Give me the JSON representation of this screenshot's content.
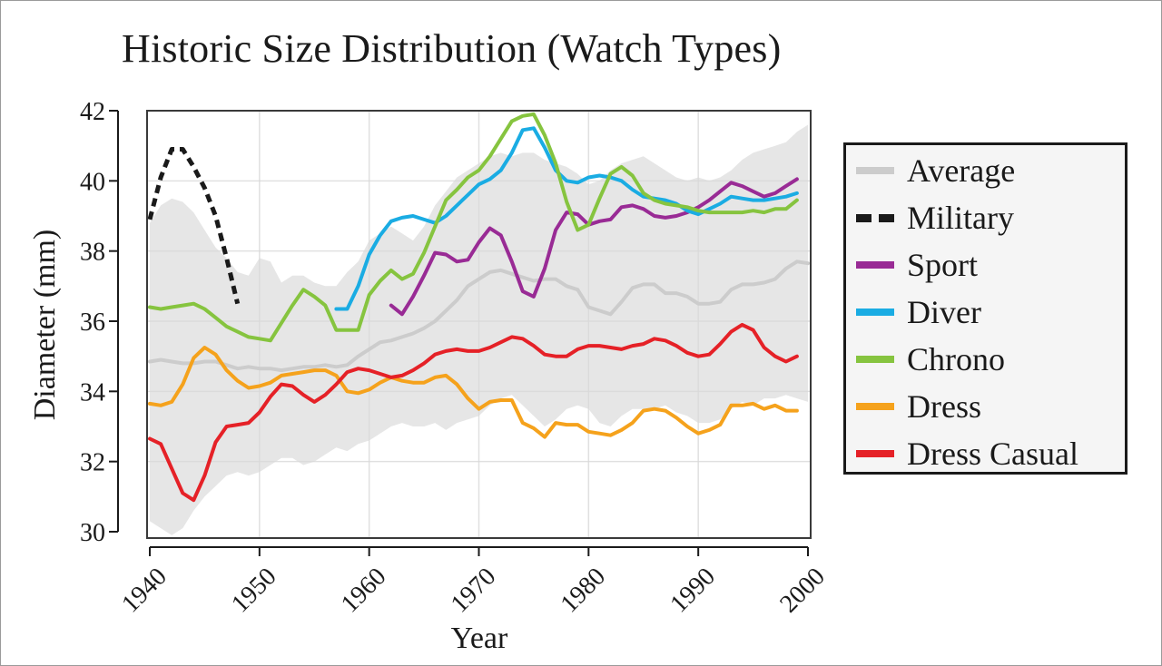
{
  "chart_data": {
    "type": "line",
    "title": "Historic Size Distribution (Watch Types)",
    "xlabel": "Year",
    "ylabel": "Diameter (mm)",
    "xlim": [
      1940,
      2000
    ],
    "ylim": [
      30,
      42
    ],
    "xticks": [
      1940,
      1950,
      1960,
      1970,
      1980,
      1990,
      2000
    ],
    "yticks": [
      30,
      32,
      34,
      36,
      38,
      40,
      42
    ],
    "xtick_labels": [
      "1940",
      "1950",
      "1960",
      "1970",
      "1980",
      "1990",
      "2000"
    ],
    "ytick_labels": [
      "30",
      "32",
      "34",
      "36",
      "38",
      "40",
      "42"
    ],
    "grid": true,
    "legend_position": "right",
    "band": {
      "name": "Average range",
      "color": "#e6e6e6",
      "x": [
        1940,
        1941,
        1942,
        1943,
        1944,
        1945,
        1946,
        1947,
        1948,
        1949,
        1950,
        1951,
        1952,
        1953,
        1954,
        1955,
        1956,
        1957,
        1958,
        1959,
        1960,
        1961,
        1962,
        1963,
        1964,
        1965,
        1966,
        1967,
        1968,
        1969,
        1970,
        1971,
        1972,
        1973,
        1974,
        1975,
        1976,
        1977,
        1978,
        1979,
        1980,
        1981,
        1982,
        1983,
        1984,
        1985,
        1986,
        1987,
        1988,
        1989,
        1990,
        1991,
        1992,
        1993,
        1994,
        1995,
        1996,
        1997,
        1998,
        1999,
        2000
      ],
      "upper": [
        38.8,
        39.3,
        39.5,
        39.4,
        39.1,
        38.6,
        38.1,
        37.8,
        37.4,
        37.3,
        37.8,
        37.7,
        37.1,
        37.3,
        37.3,
        37.1,
        37.0,
        37.0,
        37.4,
        37.7,
        38.3,
        38.5,
        38.7,
        38.5,
        38.3,
        38.7,
        39.3,
        39.7,
        40.1,
        40.3,
        40.5,
        40.7,
        40.8,
        40.7,
        40.8,
        40.8,
        40.6,
        40.5,
        40.4,
        40.2,
        39.9,
        40.0,
        40.3,
        40.5,
        40.6,
        40.7,
        40.5,
        40.3,
        40.1,
        40.0,
        40.1,
        40.0,
        40.1,
        40.3,
        40.6,
        40.8,
        40.9,
        41.0,
        41.1,
        41.4,
        41.6
      ],
      "lower": [
        30.3,
        30.1,
        29.9,
        30.1,
        30.6,
        31.0,
        31.3,
        31.6,
        31.7,
        31.6,
        31.7,
        31.9,
        32.1,
        32.1,
        31.9,
        32.0,
        32.2,
        32.4,
        32.3,
        32.5,
        32.6,
        32.8,
        33.0,
        33.1,
        33.0,
        33.0,
        33.1,
        32.9,
        33.1,
        33.2,
        33.3,
        33.6,
        33.8,
        33.9,
        33.6,
        33.3,
        33.0,
        33.2,
        33.5,
        33.6,
        33.5,
        33.1,
        33.0,
        33.3,
        33.5,
        33.5,
        33.5,
        33.6,
        33.4,
        33.3,
        33.1,
        33.1,
        33.2,
        33.5,
        33.7,
        33.6,
        33.8,
        33.8,
        33.9,
        33.8,
        33.7
      ]
    },
    "series": [
      {
        "name": "Average",
        "color": "#cccccc",
        "dash": false,
        "x": [
          1940,
          1941,
          1942,
          1943,
          1944,
          1945,
          1946,
          1947,
          1948,
          1949,
          1950,
          1951,
          1952,
          1953,
          1954,
          1955,
          1956,
          1957,
          1958,
          1959,
          1960,
          1961,
          1962,
          1963,
          1964,
          1965,
          1966,
          1967,
          1968,
          1969,
          1970,
          1971,
          1972,
          1973,
          1974,
          1975,
          1976,
          1977,
          1978,
          1979,
          1980,
          1981,
          1982,
          1983,
          1984,
          1985,
          1986,
          1987,
          1988,
          1989,
          1990,
          1991,
          1992,
          1993,
          1994,
          1995,
          1996,
          1997,
          1998,
          1999,
          2000
        ],
        "y": [
          34.85,
          34.9,
          34.85,
          34.8,
          34.8,
          34.85,
          34.85,
          34.75,
          34.65,
          34.7,
          34.65,
          34.65,
          34.6,
          34.65,
          34.7,
          34.7,
          34.75,
          34.7,
          34.75,
          35.0,
          35.2,
          35.4,
          35.45,
          35.55,
          35.65,
          35.8,
          36.0,
          36.3,
          36.6,
          37.0,
          37.2,
          37.4,
          37.45,
          37.35,
          37.25,
          37.15,
          37.2,
          37.2,
          37.0,
          36.9,
          36.4,
          36.3,
          36.2,
          36.55,
          36.95,
          37.05,
          37.05,
          36.8,
          36.8,
          36.7,
          36.5,
          36.5,
          36.55,
          36.9,
          37.05,
          37.05,
          37.1,
          37.2,
          37.5,
          37.7,
          37.65
        ]
      },
      {
        "name": "Military",
        "color": "#1a1a1a",
        "dash": true,
        "x": [
          1940,
          1941,
          1942,
          1943,
          1944,
          1945,
          1946,
          1947,
          1948
        ],
        "y": [
          38.9,
          40.1,
          40.9,
          40.9,
          40.4,
          39.8,
          39.0,
          37.8,
          36.5
        ]
      },
      {
        "name": "Sport",
        "color": "#992b95",
        "dash": false,
        "x": [
          1962,
          1963,
          1964,
          1965,
          1966,
          1967,
          1968,
          1969,
          1970,
          1971,
          1972,
          1973,
          1974,
          1975,
          1976,
          1977,
          1978,
          1979,
          1980,
          1981,
          1982,
          1983,
          1984,
          1985,
          1986,
          1987,
          1988,
          1989,
          1990,
          1991,
          1992,
          1993,
          1994,
          1995,
          1996,
          1997,
          1998,
          1999
        ],
        "y": [
          36.45,
          36.2,
          36.7,
          37.3,
          37.95,
          37.9,
          37.7,
          37.75,
          38.25,
          38.65,
          38.45,
          37.7,
          36.85,
          36.7,
          37.5,
          38.6,
          39.1,
          39.05,
          38.75,
          38.85,
          38.9,
          39.25,
          39.3,
          39.2,
          39.0,
          38.95,
          39.0,
          39.1,
          39.25,
          39.45,
          39.7,
          39.95,
          39.85,
          39.7,
          39.55,
          39.65,
          39.85,
          40.05
        ]
      },
      {
        "name": "Diver",
        "color": "#1aace3",
        "dash": false,
        "x": [
          1957,
          1958,
          1959,
          1960,
          1961,
          1962,
          1963,
          1964,
          1965,
          1966,
          1967,
          1968,
          1969,
          1970,
          1971,
          1972,
          1973,
          1974,
          1975,
          1976,
          1977,
          1978,
          1979,
          1980,
          1981,
          1982,
          1983,
          1984,
          1985,
          1986,
          1987,
          1988,
          1989,
          1990,
          1991,
          1992,
          1993,
          1994,
          1995,
          1996,
          1997,
          1998,
          1999
        ],
        "y": [
          36.35,
          36.35,
          37.0,
          37.9,
          38.45,
          38.85,
          38.95,
          39.0,
          38.9,
          38.8,
          39.0,
          39.3,
          39.6,
          39.9,
          40.05,
          40.3,
          40.8,
          41.45,
          41.5,
          40.95,
          40.3,
          40.0,
          39.95,
          40.1,
          40.15,
          40.1,
          40.0,
          39.75,
          39.55,
          39.5,
          39.45,
          39.35,
          39.15,
          39.05,
          39.2,
          39.35,
          39.55,
          39.5,
          39.45,
          39.45,
          39.5,
          39.55,
          39.65
        ]
      },
      {
        "name": "Chrono",
        "color": "#86c43f",
        "dash": false,
        "x": [
          1940,
          1941,
          1942,
          1943,
          1944,
          1945,
          1946,
          1947,
          1948,
          1949,
          1950,
          1951,
          1952,
          1953,
          1954,
          1955,
          1956,
          1957,
          1958,
          1959,
          1960,
          1961,
          1962,
          1963,
          1964,
          1965,
          1966,
          1967,
          1968,
          1969,
          1970,
          1971,
          1972,
          1973,
          1974,
          1975,
          1976,
          1977,
          1978,
          1979,
          1980,
          1981,
          1982,
          1983,
          1984,
          1985,
          1986,
          1987,
          1988,
          1989,
          1990,
          1991,
          1992,
          1993,
          1994,
          1995,
          1996,
          1997,
          1998,
          1999
        ],
        "y": [
          36.4,
          36.35,
          36.4,
          36.45,
          36.5,
          36.35,
          36.1,
          35.85,
          35.7,
          35.55,
          35.5,
          35.45,
          35.95,
          36.45,
          36.9,
          36.7,
          36.45,
          35.75,
          35.75,
          35.75,
          36.75,
          37.15,
          37.45,
          37.2,
          37.35,
          37.95,
          38.7,
          39.45,
          39.75,
          40.1,
          40.3,
          40.7,
          41.2,
          41.7,
          41.85,
          41.9,
          41.3,
          40.5,
          39.4,
          38.6,
          38.75,
          39.5,
          40.2,
          40.4,
          40.15,
          39.65,
          39.45,
          39.35,
          39.3,
          39.25,
          39.15,
          39.1,
          39.1,
          39.1,
          39.1,
          39.15,
          39.1,
          39.2,
          39.2,
          39.45
        ]
      },
      {
        "name": "Dress",
        "color": "#f5a21c",
        "dash": false,
        "x": [
          1940,
          1941,
          1942,
          1943,
          1944,
          1945,
          1946,
          1947,
          1948,
          1949,
          1950,
          1951,
          1952,
          1953,
          1954,
          1955,
          1956,
          1957,
          1958,
          1959,
          1960,
          1961,
          1962,
          1963,
          1964,
          1965,
          1966,
          1967,
          1968,
          1969,
          1970,
          1971,
          1972,
          1973,
          1974,
          1975,
          1976,
          1977,
          1978,
          1979,
          1980,
          1981,
          1982,
          1983,
          1984,
          1985,
          1986,
          1987,
          1988,
          1989,
          1990,
          1991,
          1992,
          1993,
          1994,
          1995,
          1996,
          1997,
          1998,
          1999
        ],
        "y": [
          33.65,
          33.6,
          33.7,
          34.2,
          34.95,
          35.25,
          35.05,
          34.6,
          34.3,
          34.1,
          34.15,
          34.25,
          34.45,
          34.5,
          34.55,
          34.6,
          34.6,
          34.45,
          34.0,
          33.95,
          34.05,
          34.25,
          34.4,
          34.3,
          34.25,
          34.25,
          34.4,
          34.45,
          34.2,
          33.8,
          33.5,
          33.7,
          33.75,
          33.75,
          33.1,
          32.95,
          32.7,
          33.1,
          33.05,
          33.05,
          32.85,
          32.8,
          32.75,
          32.9,
          33.1,
          33.45,
          33.5,
          33.45,
          33.25,
          33.0,
          32.8,
          32.9,
          33.05,
          33.6,
          33.6,
          33.65,
          33.5,
          33.6,
          33.45,
          33.45
        ]
      },
      {
        "name": "Dress Casual",
        "color": "#e52127",
        "dash": false,
        "x": [
          1940,
          1941,
          1942,
          1943,
          1944,
          1945,
          1946,
          1947,
          1948,
          1949,
          1950,
          1951,
          1952,
          1953,
          1954,
          1955,
          1956,
          1957,
          1958,
          1959,
          1960,
          1961,
          1962,
          1963,
          1964,
          1965,
          1966,
          1967,
          1968,
          1969,
          1970,
          1971,
          1972,
          1973,
          1974,
          1975,
          1976,
          1977,
          1978,
          1979,
          1980,
          1981,
          1982,
          1983,
          1984,
          1985,
          1986,
          1987,
          1988,
          1989,
          1990,
          1991,
          1992,
          1993,
          1994,
          1995,
          1996,
          1997,
          1998,
          1999
        ],
        "y": [
          32.65,
          32.5,
          31.8,
          31.1,
          30.9,
          31.6,
          32.55,
          33.0,
          33.05,
          33.1,
          33.4,
          33.85,
          34.2,
          34.15,
          33.9,
          33.7,
          33.9,
          34.2,
          34.55,
          34.65,
          34.6,
          34.5,
          34.4,
          34.45,
          34.6,
          34.8,
          35.05,
          35.15,
          35.2,
          35.15,
          35.15,
          35.25,
          35.4,
          35.55,
          35.5,
          35.3,
          35.05,
          35.0,
          35.0,
          35.2,
          35.3,
          35.3,
          35.25,
          35.2,
          35.3,
          35.35,
          35.5,
          35.45,
          35.3,
          35.1,
          35.0,
          35.05,
          35.35,
          35.7,
          35.9,
          35.75,
          35.25,
          35.0,
          34.85,
          35.0
        ]
      }
    ]
  }
}
